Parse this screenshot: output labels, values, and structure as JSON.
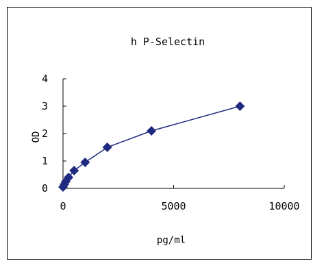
{
  "chart_data": {
    "type": "line",
    "title": "h P-Selectin",
    "xlabel": "pg/ml",
    "ylabel": "OD",
    "xlim": [
      0,
      10000
    ],
    "ylim": [
      0,
      4
    ],
    "x_ticks": [
      "0",
      "5000",
      "10000"
    ],
    "y_ticks": [
      "0",
      "1",
      "2",
      "3",
      "4"
    ],
    "grid": false,
    "legend": "none",
    "series": [
      {
        "color": "#1f2a80",
        "marker": "diamond",
        "x": [
          0,
          62.5,
          125,
          250,
          500,
          1000,
          2000,
          4000,
          8000
        ],
        "y": [
          0.05,
          0.15,
          0.25,
          0.4,
          0.65,
          0.95,
          1.5,
          2.1,
          3.0
        ]
      }
    ]
  }
}
